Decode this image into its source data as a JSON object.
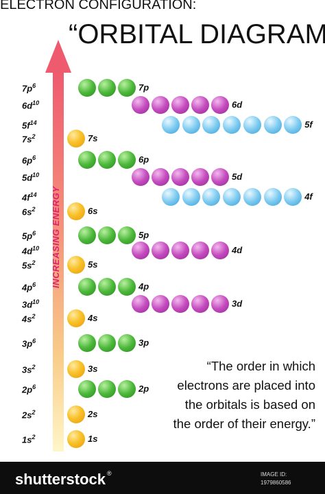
{
  "heading": "ELECTRON CONFIGURATION:",
  "title": "“ORBITAL DIAGRAM”",
  "axis_label": "INCREASING ENERGY",
  "quote": "“The order in which electrons are placed into the orbitals is based on the order of their energy.”",
  "colors": {
    "s": "#f8c12a",
    "p": "#4cb83a",
    "d": "#c44cbe",
    "f": "#7ecbf0",
    "axis_label": "#e0206a"
  },
  "configurations": [
    {
      "orbital": "7p",
      "electrons": "6"
    },
    {
      "orbital": "6d",
      "electrons": "10"
    },
    {
      "orbital": "5f",
      "electrons": "14"
    },
    {
      "orbital": "7s",
      "electrons": "2"
    },
    {
      "orbital": "6p",
      "electrons": "6"
    },
    {
      "orbital": "5d",
      "electrons": "10"
    },
    {
      "orbital": "4f",
      "electrons": "14"
    },
    {
      "orbital": "6s",
      "electrons": "2"
    },
    {
      "orbital": "5p",
      "electrons": "6"
    },
    {
      "orbital": "4d",
      "electrons": "10"
    },
    {
      "orbital": "5s",
      "electrons": "2"
    },
    {
      "orbital": "4p",
      "electrons": "6"
    },
    {
      "orbital": "3d",
      "electrons": "10"
    },
    {
      "orbital": "4s",
      "electrons": "2"
    },
    {
      "orbital": "3p",
      "electrons": "6"
    },
    {
      "orbital": "3s",
      "electrons": "2"
    },
    {
      "orbital": "2p",
      "electrons": "6"
    },
    {
      "orbital": "2s",
      "electrons": "2"
    },
    {
      "orbital": "1s",
      "electrons": "2"
    }
  ],
  "sublevels": [
    {
      "label": "7p",
      "type": "p",
      "count": 3
    },
    {
      "label": "6d",
      "type": "d",
      "count": 5
    },
    {
      "label": "5f",
      "type": "f",
      "count": 7
    },
    {
      "label": "7s",
      "type": "s",
      "count": 1
    },
    {
      "label": "6p",
      "type": "p",
      "count": 3
    },
    {
      "label": "5d",
      "type": "d",
      "count": 5
    },
    {
      "label": "4f",
      "type": "f",
      "count": 7
    },
    {
      "label": "6s",
      "type": "s",
      "count": 1
    },
    {
      "label": "5p",
      "type": "p",
      "count": 3
    },
    {
      "label": "4d",
      "type": "d",
      "count": 5
    },
    {
      "label": "5s",
      "type": "s",
      "count": 1
    },
    {
      "label": "4p",
      "type": "p",
      "count": 3
    },
    {
      "label": "3d",
      "type": "d",
      "count": 5
    },
    {
      "label": "4s",
      "type": "s",
      "count": 1
    },
    {
      "label": "3p",
      "type": "p",
      "count": 3
    },
    {
      "label": "3s",
      "type": "s",
      "count": 1
    },
    {
      "label": "2p",
      "type": "p",
      "count": 3
    },
    {
      "label": "2s",
      "type": "s",
      "count": 1
    },
    {
      "label": "1s",
      "type": "s",
      "count": 1
    }
  ],
  "footer": {
    "brand": "shutterstock",
    "registered": "®",
    "image_id_label": "IMAGE ID:",
    "image_id": "1979860586"
  }
}
